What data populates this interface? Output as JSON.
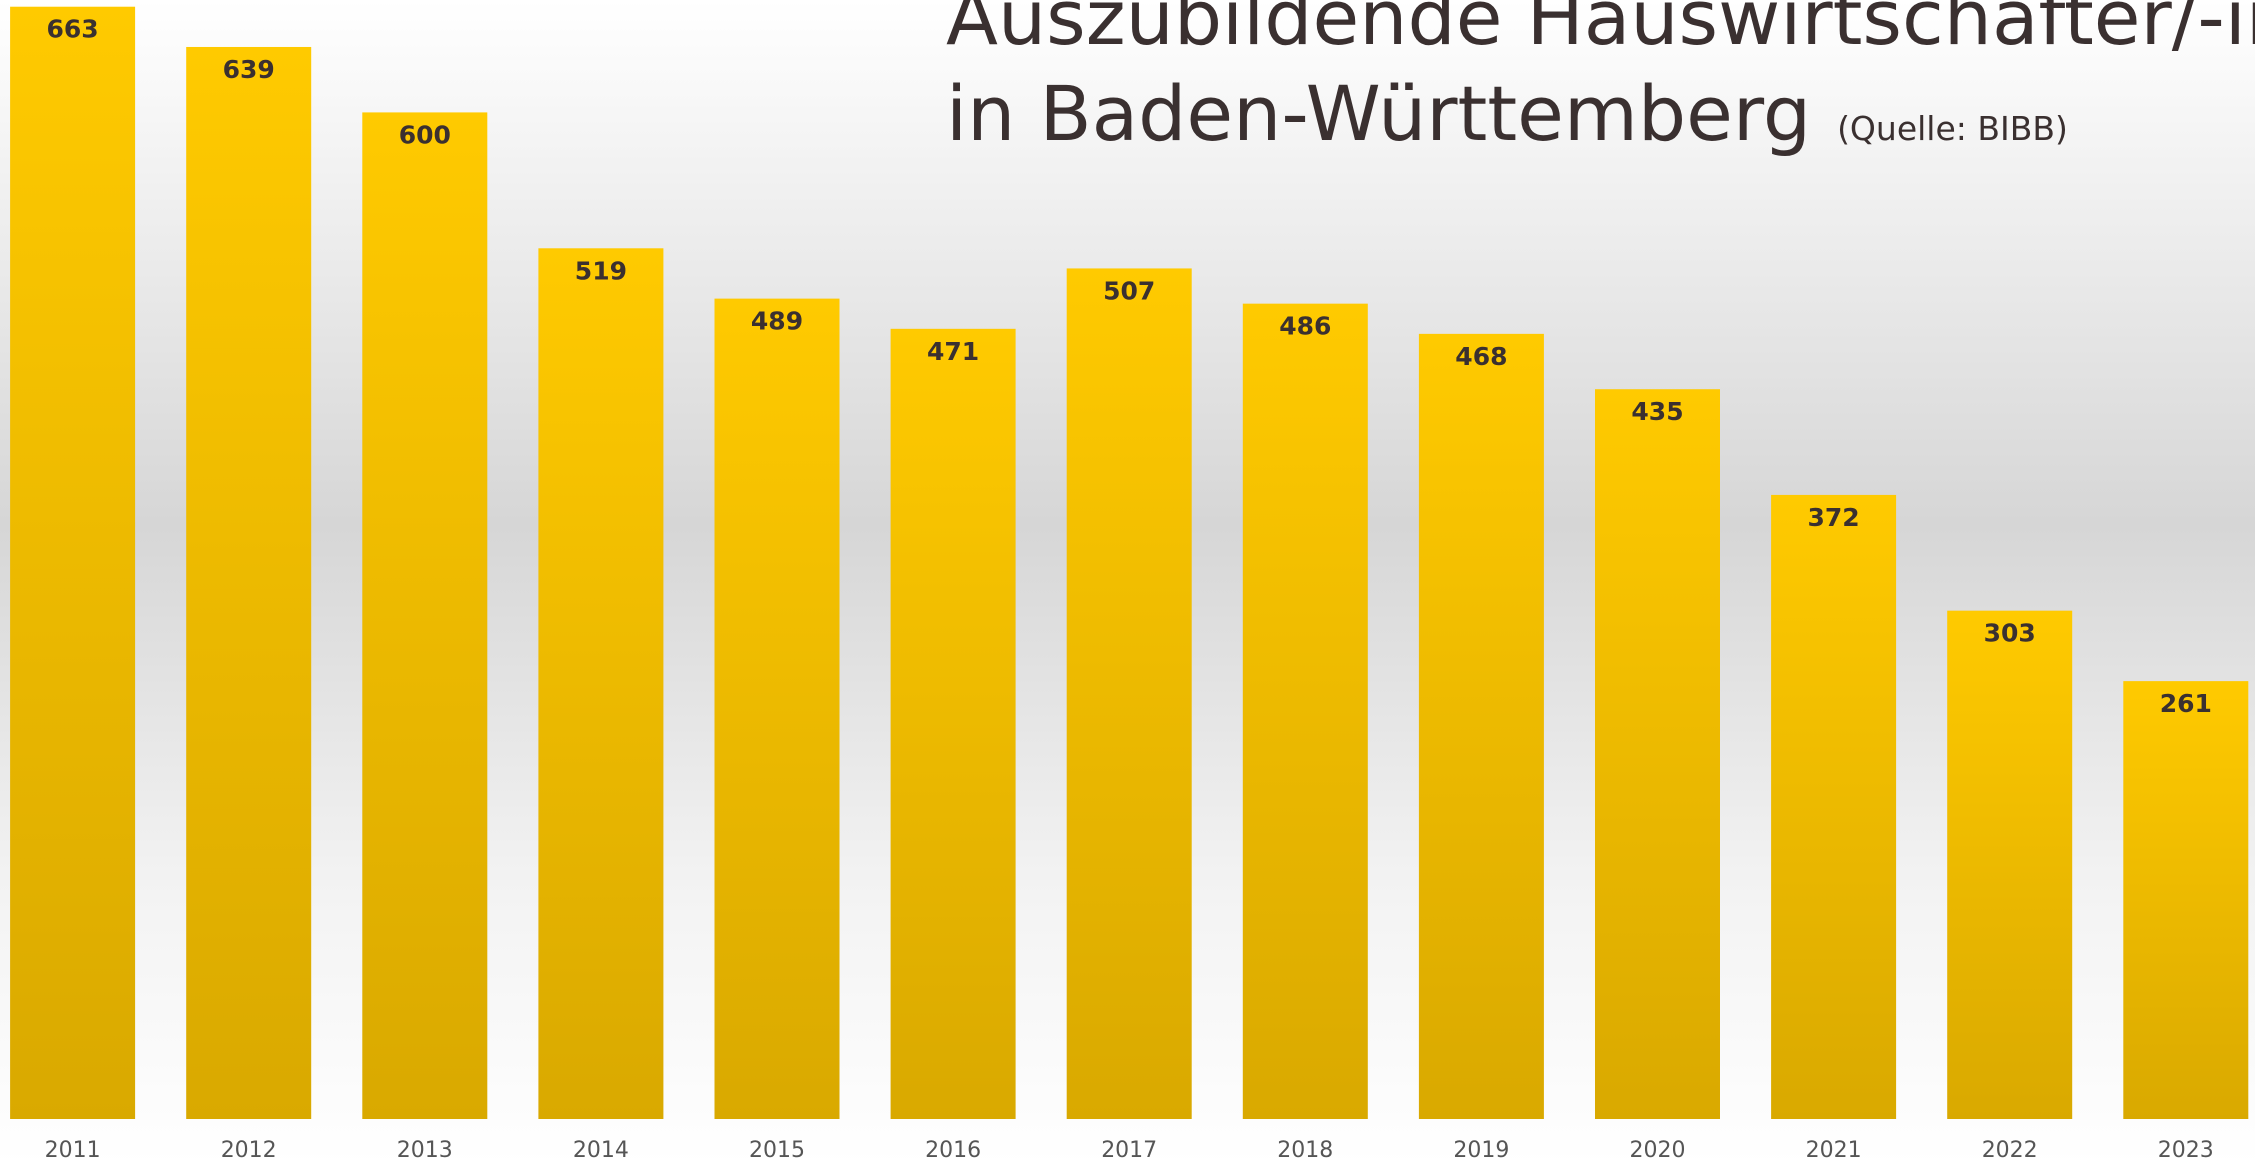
{
  "chart_data": {
    "type": "bar",
    "title_lines": [
      "Auszubildende Hauswirtschafter/-in",
      "in Baden-Württemberg"
    ],
    "subtitle": "(Quelle: BIBB)",
    "categories": [
      "2011",
      "2012",
      "2013",
      "2014",
      "2015",
      "2016",
      "2017",
      "2018",
      "2019",
      "2020",
      "2021",
      "2022",
      "2023"
    ],
    "values": [
      663,
      639,
      600,
      519,
      489,
      471,
      507,
      486,
      468,
      435,
      372,
      303,
      261
    ],
    "color": "#ffc800",
    "ylim": [
      0,
      667
    ]
  }
}
